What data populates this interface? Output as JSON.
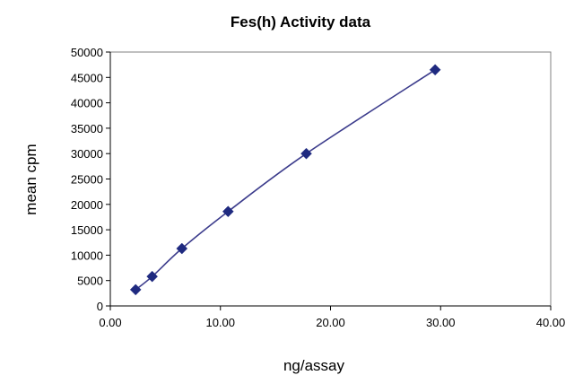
{
  "chart_data": {
    "type": "scatter",
    "title": "Fes(h) Activity data",
    "xlabel": "ng/assay",
    "ylabel": "mean cpm",
    "xlim": [
      0,
      40
    ],
    "ylim": [
      0,
      50000
    ],
    "x_ticks": [
      "0.00",
      "10.00",
      "20.00",
      "30.00",
      "40.00"
    ],
    "y_ticks": [
      "0",
      "5000",
      "10000",
      "15000",
      "20000",
      "25000",
      "30000",
      "35000",
      "40000",
      "45000",
      "50000"
    ],
    "x_tick_values": [
      0,
      10,
      20,
      30,
      40
    ],
    "y_tick_values": [
      0,
      5000,
      10000,
      15000,
      20000,
      25000,
      30000,
      35000,
      40000,
      45000,
      50000
    ],
    "grid": false,
    "legend": false,
    "series": [
      {
        "x": [
          2.3,
          3.8,
          6.5,
          10.7,
          17.8,
          29.5
        ],
        "y": [
          3200,
          5800,
          11300,
          18600,
          30000,
          46500
        ],
        "color": "#1f2a80",
        "line_color": "#3c3c8c",
        "marker": "diamond",
        "smooth_line": true
      }
    ]
  }
}
